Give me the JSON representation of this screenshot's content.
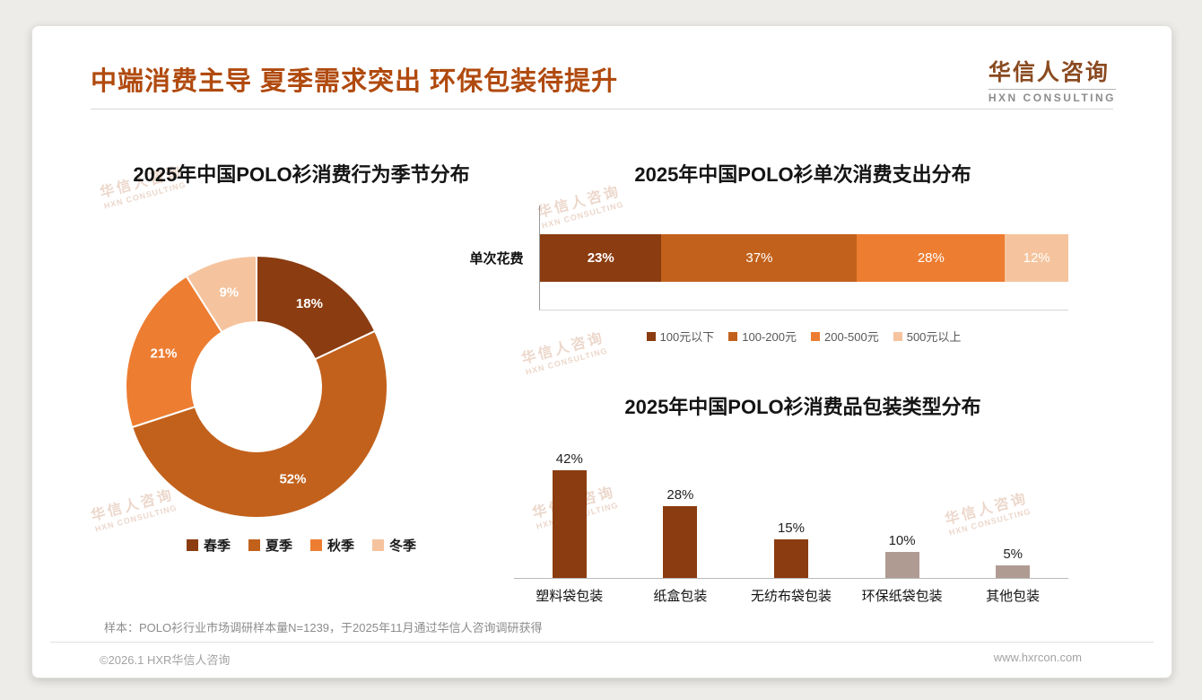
{
  "page": {
    "title": "中端消费主导 夏季需求突出 环保包装待提升",
    "logo": {
      "cn": "华信人咨询",
      "en": "HXN CONSULTING"
    },
    "watermark": {
      "cn": "华信人咨询",
      "en": "HXN CONSULTING"
    },
    "sample_note": "样本：POLO衫行业市场调研样本量N=1239，于2025年11月通过华信人咨询调研获得",
    "footer_left": "©2026.1 HXR华信人咨询",
    "footer_right": "www.hxrcon.com"
  },
  "colors": {
    "accent_title": "#B04A0E",
    "dark_brown": "#8B3C10",
    "mid_brown": "#C2611C",
    "orange": "#ED7D31",
    "light_peach": "#F5C49E",
    "taupe": "#B09B93"
  },
  "chart_data": [
    {
      "id": "season-donut",
      "type": "pie",
      "subtype": "doughnut",
      "title": "2025年中国POLO衫消费行为季节分布",
      "categories": [
        "春季",
        "夏季",
        "秋季",
        "冬季"
      ],
      "values": [
        18,
        52,
        21,
        9
      ],
      "labels": [
        "18%",
        "52%",
        "21%",
        "9%"
      ],
      "colors": [
        "#8B3C10",
        "#C2611C",
        "#ED7D31",
        "#F5C49E"
      ],
      "legend_position": "bottom"
    },
    {
      "id": "spend-stacked-bar",
      "type": "bar",
      "subtype": "stacked-horizontal",
      "title": "2025年中国POLO衫单次消费支出分布",
      "category": "单次花费",
      "series": [
        {
          "name": "100元以下",
          "value": 23,
          "color": "#8B3C10"
        },
        {
          "name": "100-200元",
          "value": 37,
          "color": "#C2611C"
        },
        {
          "name": "200-500元",
          "value": 28,
          "color": "#ED7D31"
        },
        {
          "name": "500元以上",
          "value": 12,
          "color": "#F5C49E"
        }
      ],
      "xlim": [
        0,
        100
      ],
      "legend_position": "bottom"
    },
    {
      "id": "packaging-bar",
      "type": "bar",
      "title": "2025年中国POLO衫消费品包装类型分布",
      "categories": [
        "塑料袋包装",
        "纸盒包装",
        "无纺布袋包装",
        "环保纸袋包装",
        "其他包装"
      ],
      "values": [
        42,
        28,
        15,
        10,
        5
      ],
      "labels": [
        "42%",
        "28%",
        "15%",
        "10%",
        "5%"
      ],
      "colors": [
        "#8B3C10",
        "#8B3C10",
        "#8B3C10",
        "#B09B93",
        "#B09B93"
      ],
      "ylim": [
        0,
        45
      ],
      "grid": false,
      "legend_position": "none"
    }
  ]
}
